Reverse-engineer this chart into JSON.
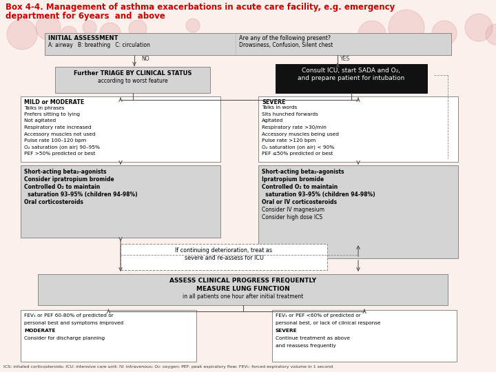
{
  "title_line1": "Box 4-4. Management of asthma exacerbations in acute care facility, e.g. emergency",
  "title_line2": "department for 6years  and  above",
  "title_color": "#cc0000",
  "bg_color": "#fcf0ec",
  "footnote": "ICS: inhaled corticosteroids; ICU: intensive care unit; IV: intravenous; O₂: oxygen; PEF: peak expiratory flow; FEV₁: forced expiratory volume in 1 second",
  "arrow_color": "#555555",
  "box_edge": "#888888",
  "gray_fill": "#d4d4d4",
  "white_fill": "#ffffff",
  "black_fill": "#111111"
}
